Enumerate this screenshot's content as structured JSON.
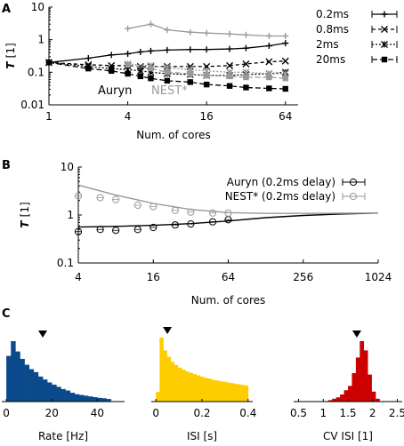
{
  "panels": {
    "A": {
      "label": "A"
    },
    "B": {
      "label": "B"
    },
    "C": {
      "label": "C"
    }
  },
  "chart_data": [
    {
      "panel": "A",
      "type": "line",
      "xscale": "log2",
      "yscale": "log10",
      "xlim": [
        1,
        80
      ],
      "ylim": [
        0.01,
        10
      ],
      "xticks": [
        {
          "v": 1,
          "label": "1"
        },
        {
          "v": 4,
          "label": "4"
        },
        {
          "v": 16,
          "label": "16"
        },
        {
          "v": 64,
          "label": "64"
        }
      ],
      "yticks": [
        {
          "v": 0.01,
          "label": "0.01"
        },
        {
          "v": 0.1,
          "label": "0.1"
        },
        {
          "v": 1,
          "label": "1"
        },
        {
          "v": 10,
          "label": "10"
        }
      ],
      "xlabel": "Num. of cores",
      "ylabel_main": "T",
      "ylabel_unit": "[1]",
      "legend": [
        {
          "name": "0.2ms",
          "marker": "plus"
        },
        {
          "name": "0.8ms",
          "marker": "x"
        },
        {
          "name": "2ms",
          "marker": "star"
        },
        {
          "name": "20ms",
          "marker": "square"
        }
      ],
      "annotations": [
        {
          "text": "Auryn",
          "color": "#000000"
        },
        {
          "text": "NEST*",
          "color": "#999999"
        }
      ],
      "series": [
        {
          "group": "auryn",
          "delay": "0.2ms",
          "color": "#000000",
          "dash": "none",
          "marker": "plus",
          "x": [
            1,
            2,
            3,
            4,
            5,
            6,
            8,
            12,
            16,
            24,
            32,
            48,
            64
          ],
          "y": [
            0.2,
            0.27,
            0.34,
            0.37,
            0.42,
            0.45,
            0.48,
            0.5,
            0.5,
            0.52,
            0.55,
            0.65,
            0.78
          ]
        },
        {
          "group": "auryn",
          "delay": "0.8ms",
          "color": "#000000",
          "dash": "4,3",
          "marker": "x",
          "x": [
            1,
            2,
            3,
            4,
            5,
            6,
            8,
            12,
            16,
            24,
            32,
            48,
            64
          ],
          "y": [
            0.2,
            0.17,
            0.16,
            0.16,
            0.15,
            0.15,
            0.15,
            0.15,
            0.15,
            0.16,
            0.18,
            0.21,
            0.22
          ]
        },
        {
          "group": "auryn",
          "delay": "2ms",
          "color": "#000000",
          "dash": "2,2",
          "marker": "star",
          "x": [
            1,
            2,
            3,
            4,
            5,
            6,
            8,
            12,
            16,
            24,
            32,
            48,
            64
          ],
          "y": [
            0.2,
            0.15,
            0.13,
            0.12,
            0.11,
            0.1,
            0.09,
            0.085,
            0.08,
            0.08,
            0.085,
            0.09,
            0.1
          ]
        },
        {
          "group": "auryn",
          "delay": "20ms",
          "color": "#000000",
          "dash": "6,3",
          "marker": "square",
          "x": [
            1,
            2,
            3,
            4,
            5,
            6,
            8,
            12,
            16,
            24,
            32,
            48,
            64
          ],
          "y": [
            0.2,
            0.13,
            0.11,
            0.09,
            0.075,
            0.065,
            0.055,
            0.05,
            0.042,
            0.038,
            0.034,
            0.032,
            0.031
          ]
        },
        {
          "group": "nest",
          "delay": "0.2ms",
          "color": "#999999",
          "dash": "none",
          "marker": "plus",
          "x": [
            4,
            6,
            8,
            12,
            16,
            24,
            32,
            48,
            64
          ],
          "y": [
            2.2,
            3.0,
            2.0,
            1.7,
            1.6,
            1.5,
            1.4,
            1.3,
            1.3
          ]
        },
        {
          "group": "nest",
          "delay": "2ms",
          "color": "#999999",
          "dash": "2,2",
          "marker": "star",
          "x": [
            4,
            6,
            8,
            12,
            16,
            24,
            32,
            48,
            64
          ],
          "y": [
            0.18,
            0.16,
            0.14,
            0.12,
            0.11,
            0.1,
            0.1,
            0.09,
            0.09
          ]
        },
        {
          "group": "nest",
          "delay": "20ms",
          "color": "#999999",
          "dash": "6,3",
          "marker": "square",
          "x": [
            4,
            6,
            8,
            12,
            16,
            24,
            32,
            48,
            64
          ],
          "y": [
            0.17,
            0.13,
            0.1,
            0.09,
            0.08,
            0.075,
            0.07,
            0.07,
            0.065
          ]
        }
      ]
    },
    {
      "panel": "B",
      "type": "line",
      "xscale": "log2",
      "yscale": "log10",
      "xlim": [
        4,
        1024
      ],
      "ylim": [
        0.1,
        10
      ],
      "xticks": [
        {
          "v": 4,
          "label": "4"
        },
        {
          "v": 16,
          "label": "16"
        },
        {
          "v": 64,
          "label": "64"
        },
        {
          "v": 256,
          "label": "256"
        },
        {
          "v": 1024,
          "label": "1024"
        }
      ],
      "yticks": [
        {
          "v": 0.1,
          "label": "0.1"
        },
        {
          "v": 1,
          "label": "1"
        },
        {
          "v": 10,
          "label": "10"
        }
      ],
      "xlabel": "Num. of cores",
      "ylabel_main": "T",
      "ylabel_unit": "[1]",
      "legend": [
        {
          "name": "Auryn (0.2ms delay)",
          "color": "#000000"
        },
        {
          "name": "NEST* (0.2ms delay)",
          "color": "#999999"
        }
      ],
      "series": [
        {
          "name": "Auryn (0.2ms delay)",
          "color": "#000000",
          "x": [
            4,
            6,
            8,
            12,
            16,
            24,
            32,
            48,
            64
          ],
          "y": [
            0.45,
            0.5,
            0.48,
            0.5,
            0.55,
            0.62,
            0.65,
            0.72,
            0.8
          ]
        },
        {
          "name": "NEST* (0.2ms delay)",
          "color": "#999999",
          "x": [
            4,
            6,
            8,
            12,
            16,
            24,
            32,
            48,
            64
          ],
          "y": [
            2.5,
            2.3,
            2.1,
            1.6,
            1.5,
            1.25,
            1.15,
            1.1,
            1.1
          ]
        }
      ],
      "fits": [
        {
          "color": "#000000",
          "x": [
            4,
            8,
            16,
            32,
            64,
            128,
            256,
            512,
            1024
          ],
          "y": [
            0.56,
            0.58,
            0.61,
            0.66,
            0.75,
            0.88,
            0.98,
            1.05,
            1.1
          ]
        },
        {
          "color": "#999999",
          "x": [
            4,
            8,
            16,
            32,
            64,
            128,
            256,
            512,
            1024
          ],
          "y": [
            4.2,
            2.6,
            1.75,
            1.3,
            1.12,
            1.08,
            1.08,
            1.09,
            1.1
          ]
        }
      ]
    },
    {
      "panel": "C1",
      "type": "bar",
      "color": "#0a4a8a",
      "xlabel": "Rate [Hz]",
      "xlim": [
        -2,
        52
      ],
      "xticks": [
        {
          "v": 0,
          "label": "0"
        },
        {
          "v": 20,
          "label": "20"
        },
        {
          "v": 40,
          "label": "40"
        }
      ],
      "bin_start": 0,
      "bin_width": 2,
      "values": [
        0.62,
        0.82,
        0.68,
        0.58,
        0.5,
        0.44,
        0.4,
        0.34,
        0.3,
        0.26,
        0.23,
        0.2,
        0.17,
        0.15,
        0.12,
        0.1,
        0.09,
        0.08,
        0.07,
        0.06,
        0.05,
        0.045,
        0.035
      ],
      "marker_value": 16
    },
    {
      "panel": "C2",
      "type": "bar",
      "color": "#ffcc00",
      "xlabel": "ISI [s]",
      "xlim": [
        -0.02,
        0.42
      ],
      "xticks": [
        {
          "v": 0,
          "label": "0"
        },
        {
          "v": 0.2,
          "label": "0.2"
        },
        {
          "v": 0.4,
          "label": "0.4"
        }
      ],
      "bin_start": 0,
      "bin_width": 0.016,
      "values": [
        0.15,
        1.0,
        0.8,
        0.7,
        0.62,
        0.57,
        0.53,
        0.5,
        0.47,
        0.45,
        0.43,
        0.41,
        0.39,
        0.37,
        0.36,
        0.34,
        0.33,
        0.32,
        0.31,
        0.3,
        0.29,
        0.28,
        0.27,
        0.26,
        0.25
      ],
      "marker_value": 0.05
    },
    {
      "panel": "C3",
      "type": "bar",
      "color": "#cc0000",
      "xlabel": "CV ISI [1]",
      "xlim": [
        0.4,
        2.6
      ],
      "xticks": [
        {
          "v": 0.5,
          "label": "0.5"
        },
        {
          "v": 1,
          "label": "1"
        },
        {
          "v": 1.5,
          "label": "1.5"
        },
        {
          "v": 2,
          "label": "2"
        },
        {
          "v": 2.5,
          "label": "2.5"
        }
      ],
      "bin_start": 1.1,
      "bin_width": 0.08,
      "values": [
        0.02,
        0.04,
        0.06,
        0.1,
        0.16,
        0.22,
        0.4,
        0.62,
        0.85,
        0.72,
        0.38,
        0.14,
        0.04
      ],
      "marker_value": 1.68
    }
  ]
}
